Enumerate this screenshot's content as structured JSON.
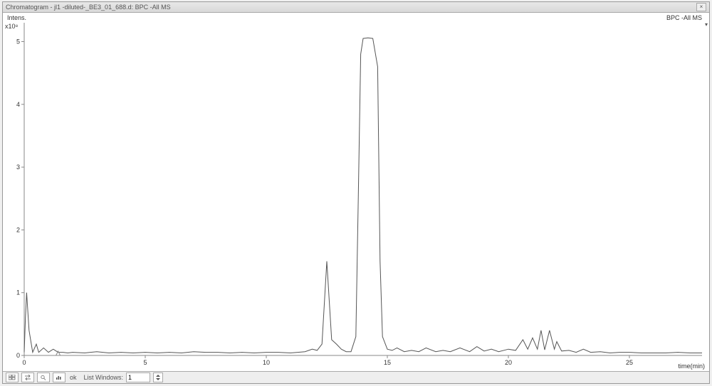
{
  "window": {
    "title": "Chromatogram - jl1 -diluted-_BE3_01_688.d: BPC -All MS",
    "close": "×"
  },
  "plot": {
    "series_label": "BPC -All MS",
    "ylabel": "Intens.",
    "ymultiplier": "x10⁸",
    "xlabel": "time(min)",
    "xlim": [
      0,
      28
    ],
    "ylim": [
      0,
      5.3
    ],
    "xticks": [
      0,
      5,
      10,
      15,
      20,
      25
    ],
    "yticks": [
      0,
      1,
      2,
      3,
      4,
      5
    ],
    "marker_x": 1.4,
    "line_color": "#555555",
    "axis_color": "#888888",
    "tick_color": "#888888",
    "background": "#ffffff",
    "tick_fontsize": 9,
    "data_x": [
      0,
      0.05,
      0.1,
      0.2,
      0.35,
      0.5,
      0.6,
      0.8,
      1.0,
      1.2,
      1.4,
      1.6,
      1.8,
      2.0,
      2.5,
      3.0,
      3.5,
      4.0,
      4.5,
      5.0,
      5.5,
      6.0,
      6.5,
      7.0,
      7.5,
      8.0,
      8.5,
      9.0,
      9.5,
      10.0,
      10.5,
      11.0,
      11.3,
      11.6,
      11.9,
      12.1,
      12.3,
      12.5,
      12.7,
      12.9,
      13.1,
      13.3,
      13.5,
      13.7,
      13.8,
      13.9,
      14.0,
      14.2,
      14.4,
      14.6,
      14.7,
      14.8,
      15.0,
      15.2,
      15.4,
      15.7,
      16.0,
      16.3,
      16.6,
      17.0,
      17.3,
      17.6,
      18.0,
      18.4,
      18.7,
      19.0,
      19.3,
      19.6,
      20.0,
      20.3,
      20.6,
      20.8,
      21.0,
      21.2,
      21.35,
      21.5,
      21.7,
      21.9,
      22.0,
      22.2,
      22.5,
      22.8,
      23.1,
      23.4,
      23.8,
      24.2,
      24.6,
      25.0,
      25.5,
      26.0,
      26.5,
      27.0,
      27.5,
      28.0
    ],
    "data_y": [
      0.05,
      0.6,
      1.0,
      0.4,
      0.05,
      0.18,
      0.05,
      0.12,
      0.05,
      0.1,
      0.05,
      0.05,
      0.04,
      0.05,
      0.04,
      0.06,
      0.04,
      0.05,
      0.04,
      0.05,
      0.04,
      0.05,
      0.04,
      0.06,
      0.05,
      0.05,
      0.04,
      0.05,
      0.04,
      0.05,
      0.05,
      0.04,
      0.05,
      0.06,
      0.1,
      0.08,
      0.18,
      1.5,
      0.25,
      0.18,
      0.1,
      0.06,
      0.06,
      0.3,
      2.5,
      4.8,
      5.05,
      5.06,
      5.05,
      4.6,
      1.5,
      0.3,
      0.1,
      0.08,
      0.12,
      0.06,
      0.08,
      0.06,
      0.12,
      0.06,
      0.08,
      0.06,
      0.12,
      0.06,
      0.14,
      0.07,
      0.1,
      0.06,
      0.1,
      0.08,
      0.25,
      0.1,
      0.28,
      0.1,
      0.4,
      0.09,
      0.4,
      0.1,
      0.22,
      0.07,
      0.08,
      0.05,
      0.1,
      0.05,
      0.06,
      0.04,
      0.05,
      0.05,
      0.04,
      0.04,
      0.04,
      0.05,
      0.04,
      0.04
    ]
  },
  "statusbar": {
    "list_windows_label": "List Windows:",
    "list_windows_value": "1"
  }
}
